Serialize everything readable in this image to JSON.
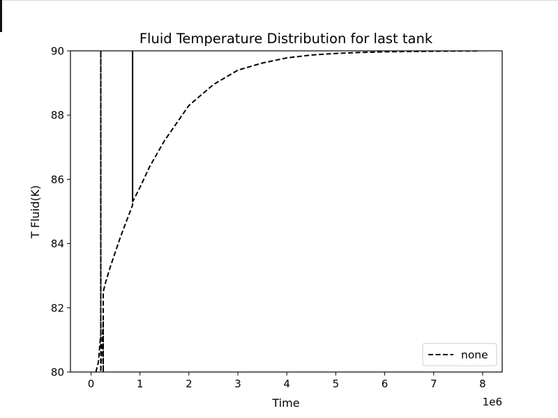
{
  "chart_data": {
    "type": "line",
    "title": "Fluid Temperature Distribution for last tank",
    "xlabel": "Time",
    "ylabel": "T Fluid(K)",
    "x_offset_label": "1e6",
    "xlim": [
      -0.42,
      8.4
    ],
    "ylim": [
      80,
      90
    ],
    "xticks": [
      0,
      1,
      2,
      3,
      4,
      5,
      6,
      7,
      8
    ],
    "yticks": [
      80,
      82,
      84,
      86,
      88,
      90
    ],
    "grid": false,
    "legend": {
      "position": "lower right",
      "entries": [
        "none"
      ]
    },
    "series": [
      {
        "name": "none",
        "style": "dashed",
        "color": "#000000",
        "x": [
          0.1,
          0.15,
          0.2,
          0.2,
          0.2,
          0.25,
          0.25,
          0.25,
          0.3,
          0.4,
          0.5,
          0.6,
          0.7,
          0.8,
          0.85,
          0.85,
          0.85,
          1.0,
          1.2,
          1.5,
          2.0,
          2.5,
          3.0,
          3.5,
          4.0,
          4.5,
          5.0,
          5.5,
          6.0,
          6.5,
          7.0,
          7.5,
          7.95
        ],
        "y": [
          80.0,
          80.3,
          81.2,
          90.0,
          80.0,
          81.6,
          80.0,
          82.5,
          82.8,
          83.3,
          83.75,
          84.2,
          84.6,
          85.0,
          85.2,
          90.0,
          85.3,
          85.75,
          86.4,
          87.2,
          88.3,
          88.95,
          89.4,
          89.62,
          89.78,
          89.87,
          89.92,
          89.95,
          89.97,
          89.98,
          89.99,
          89.995,
          90.0
        ]
      }
    ]
  }
}
